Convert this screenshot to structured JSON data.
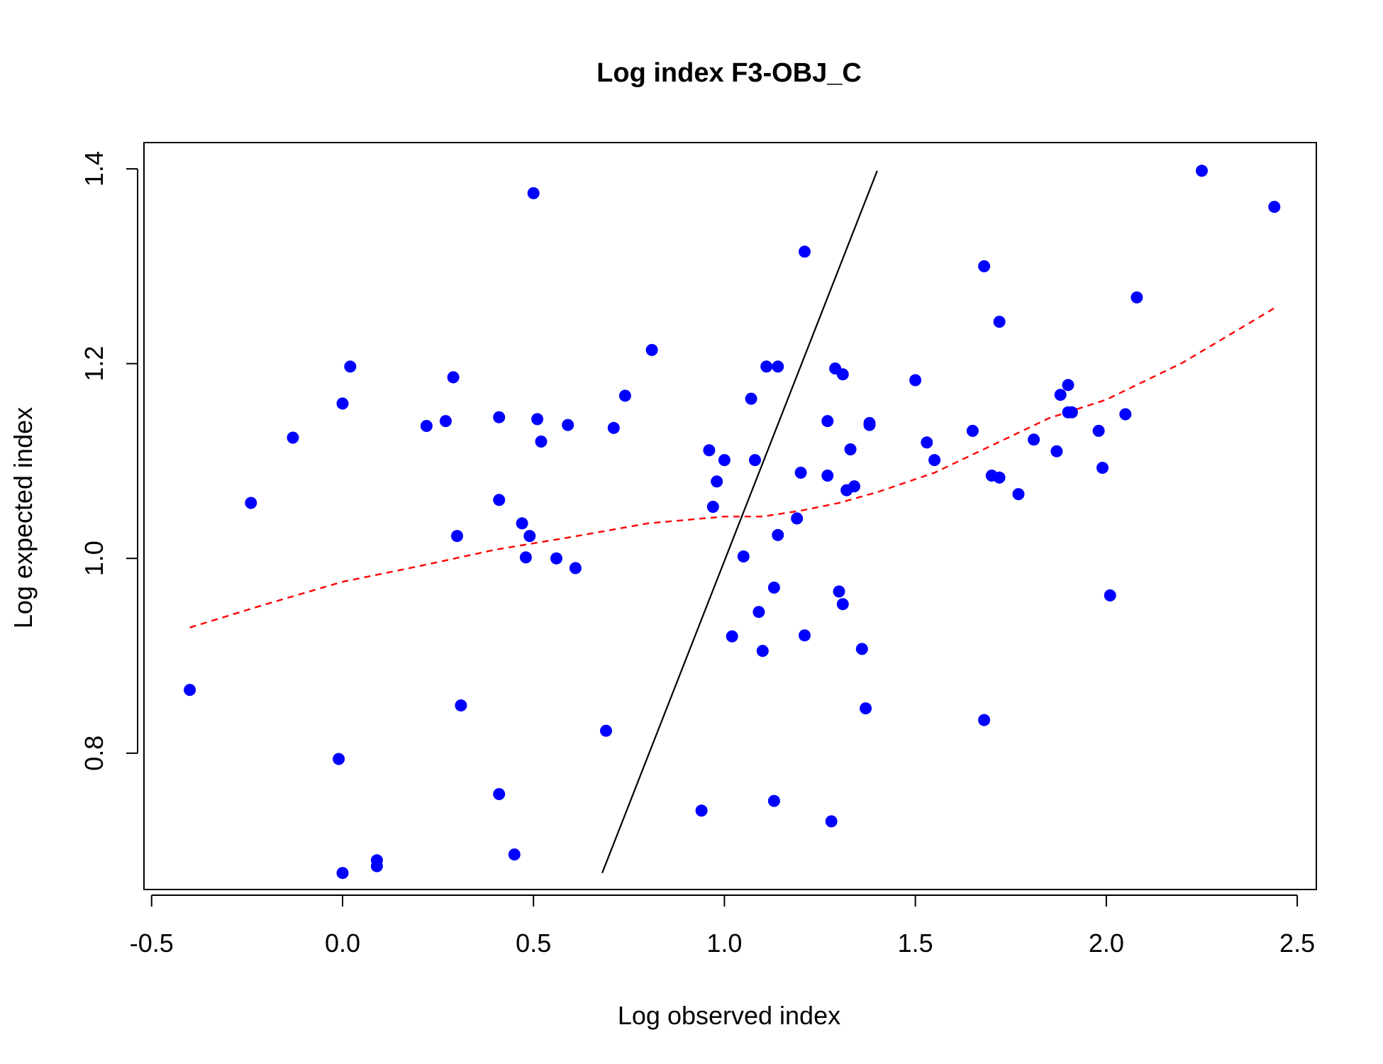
{
  "chart_data": {
    "type": "scatter",
    "title": "Log index F3-OBJ_C",
    "xlabel": "Log observed index",
    "ylabel": "Log expected index",
    "xlim": [
      -0.52,
      2.55
    ],
    "ylim": [
      0.66,
      1.427
    ],
    "xticks": [
      -0.5,
      0.0,
      0.5,
      1.0,
      1.5,
      2.0,
      2.5
    ],
    "xtick_labels": [
      "-0.5",
      "0.0",
      "0.5",
      "1.0",
      "1.5",
      "2.0",
      "2.5"
    ],
    "yticks": [
      0.8,
      1.0,
      1.2,
      1.4
    ],
    "ytick_labels": [
      "0.8",
      "1.0",
      "1.2",
      "1.4"
    ],
    "grid": false,
    "colors": {
      "points": "#0000ff",
      "smooth": "#ff0000",
      "reference": "#000000"
    },
    "series": [
      {
        "kind": "points",
        "points": [
          [
            -0.4,
            0.865
          ],
          [
            -0.24,
            1.057
          ],
          [
            -0.13,
            1.124
          ],
          [
            -0.01,
            0.794
          ],
          [
            0.0,
            1.159
          ],
          [
            0.0,
            0.677
          ],
          [
            0.02,
            1.197
          ],
          [
            0.09,
            0.69
          ],
          [
            0.09,
            0.684
          ],
          [
            0.22,
            1.136
          ],
          [
            0.27,
            1.141
          ],
          [
            0.29,
            1.186
          ],
          [
            0.3,
            1.023
          ],
          [
            0.31,
            0.849
          ],
          [
            0.41,
            1.145
          ],
          [
            0.41,
            1.06
          ],
          [
            0.41,
            0.758
          ],
          [
            0.45,
            0.696
          ],
          [
            0.47,
            1.036
          ],
          [
            0.48,
            1.001
          ],
          [
            0.49,
            1.023
          ],
          [
            0.5,
            1.375
          ],
          [
            0.51,
            1.143
          ],
          [
            0.52,
            1.12
          ],
          [
            0.56,
            1.0
          ],
          [
            0.59,
            1.137
          ],
          [
            0.61,
            0.99
          ],
          [
            0.69,
            0.823
          ],
          [
            0.71,
            1.134
          ],
          [
            0.74,
            1.167
          ],
          [
            0.81,
            1.214
          ],
          [
            0.94,
            0.741
          ],
          [
            0.96,
            1.111
          ],
          [
            0.97,
            1.053
          ],
          [
            0.98,
            1.079
          ],
          [
            1.0,
            1.101
          ],
          [
            1.02,
            0.92
          ],
          [
            1.05,
            1.002
          ],
          [
            1.07,
            1.164
          ],
          [
            1.08,
            1.101
          ],
          [
            1.09,
            0.945
          ],
          [
            1.1,
            0.905
          ],
          [
            1.11,
            1.197
          ],
          [
            1.13,
            0.97
          ],
          [
            1.13,
            0.751
          ],
          [
            1.14,
            1.197
          ],
          [
            1.14,
            1.024
          ],
          [
            1.19,
            1.041
          ],
          [
            1.2,
            1.088
          ],
          [
            1.21,
            1.315
          ],
          [
            1.21,
            0.921
          ],
          [
            1.27,
            1.141
          ],
          [
            1.27,
            1.085
          ],
          [
            1.28,
            0.73
          ],
          [
            1.29,
            1.195
          ],
          [
            1.3,
            0.966
          ],
          [
            1.31,
            0.953
          ],
          [
            1.31,
            1.189
          ],
          [
            1.32,
            1.07
          ],
          [
            1.33,
            1.112
          ],
          [
            1.34,
            1.074
          ],
          [
            1.36,
            0.907
          ],
          [
            1.37,
            0.846
          ],
          [
            1.38,
            1.137
          ],
          [
            1.38,
            1.139
          ],
          [
            1.5,
            1.183
          ],
          [
            1.53,
            1.119
          ],
          [
            1.55,
            1.101
          ],
          [
            1.65,
            1.131
          ],
          [
            1.68,
            1.3
          ],
          [
            1.68,
            0.834
          ],
          [
            1.7,
            1.085
          ],
          [
            1.72,
            1.243
          ],
          [
            1.72,
            1.083
          ],
          [
            1.77,
            1.066
          ],
          [
            1.81,
            1.122
          ],
          [
            1.87,
            1.11
          ],
          [
            1.88,
            1.168
          ],
          [
            1.9,
            1.178
          ],
          [
            1.9,
            1.15
          ],
          [
            1.91,
            1.15
          ],
          [
            1.98,
            1.131
          ],
          [
            1.99,
            1.093
          ],
          [
            2.01,
            0.962
          ],
          [
            2.05,
            1.148
          ],
          [
            2.08,
            1.268
          ],
          [
            2.25,
            1.398
          ],
          [
            2.44,
            1.361
          ]
        ]
      },
      {
        "kind": "line",
        "style": "solid",
        "points": [
          [
            0.68,
            0.677
          ],
          [
            1.4,
            1.398
          ]
        ]
      },
      {
        "kind": "line",
        "style": "dashed",
        "points": [
          [
            -0.4,
            0.929
          ],
          [
            -0.2,
            0.953
          ],
          [
            0.0,
            0.976
          ],
          [
            0.2,
            0.992
          ],
          [
            0.4,
            1.009
          ],
          [
            0.6,
            1.022
          ],
          [
            0.8,
            1.036
          ],
          [
            1.0,
            1.043
          ],
          [
            1.1,
            1.043
          ],
          [
            1.2,
            1.049
          ],
          [
            1.3,
            1.057
          ],
          [
            1.4,
            1.068
          ],
          [
            1.55,
            1.088
          ],
          [
            1.7,
            1.116
          ],
          [
            1.85,
            1.144
          ],
          [
            2.0,
            1.163
          ],
          [
            2.2,
            1.201
          ],
          [
            2.44,
            1.257
          ]
        ]
      }
    ]
  }
}
